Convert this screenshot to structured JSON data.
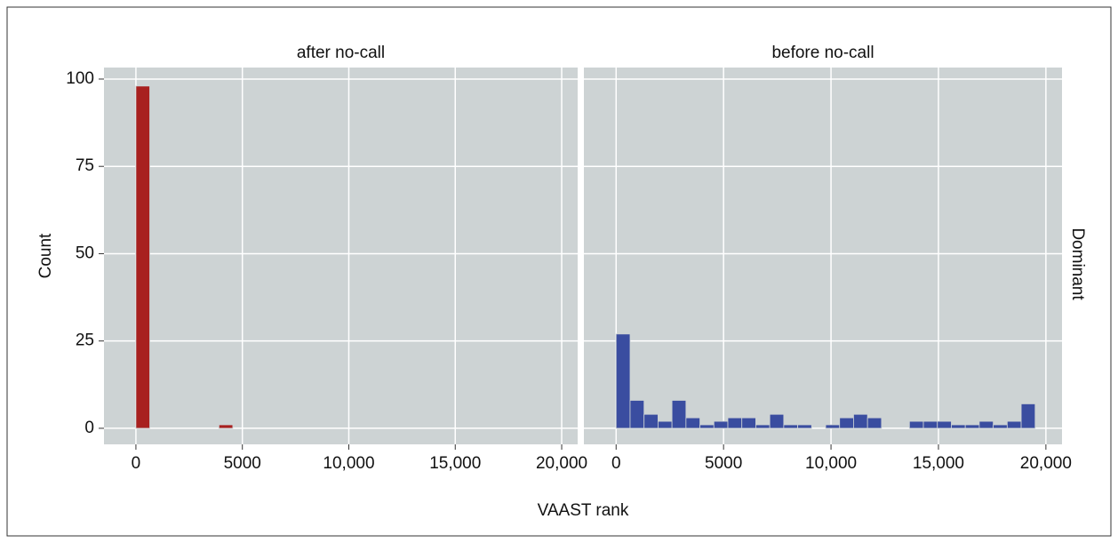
{
  "chart_data": {
    "type": "histogram",
    "x_label": "VAAST rank",
    "y_label": "Count",
    "facet_label": "Dominant",
    "xlim": [
      -1500,
      20750
    ],
    "ylim": [
      -4.6,
      103.3
    ],
    "xticks": [
      0,
      5000,
      {
        "value": 10000,
        "label": "10,000"
      },
      {
        "value": 15000,
        "label": "15,000"
      },
      {
        "value": 20000,
        "label": "20,000"
      }
    ],
    "yticks": [
      0,
      25,
      50,
      75,
      100
    ],
    "grid": true,
    "bins": [
      0,
      650,
      1300,
      1950,
      2600,
      3250,
      3900,
      4550,
      5200,
      5850,
      6500,
      7150,
      7800,
      8450,
      9100,
      9750,
      10400,
      11050,
      11700,
      12350,
      13000,
      13650,
      14300,
      14950,
      15600,
      16250,
      16900,
      17550,
      18200,
      18850,
      19500
    ],
    "panels": [
      {
        "title": "after no-call",
        "color": "#a8201f",
        "values": [
          98,
          0,
          0,
          0,
          0,
          0,
          1,
          0,
          0,
          0,
          0,
          0,
          0,
          0,
          0,
          0,
          0,
          0,
          0,
          0,
          0,
          0,
          0,
          0,
          0,
          0,
          0,
          0,
          0,
          0
        ]
      },
      {
        "title": "before no-call",
        "color": "#3a4da0",
        "values": [
          27,
          8,
          4,
          2,
          8,
          3,
          1,
          2,
          3,
          3,
          1,
          4,
          1,
          1,
          0,
          1,
          3,
          4,
          3,
          0,
          0,
          2,
          2,
          2,
          1,
          1,
          2,
          1,
          2,
          7
        ]
      }
    ]
  }
}
